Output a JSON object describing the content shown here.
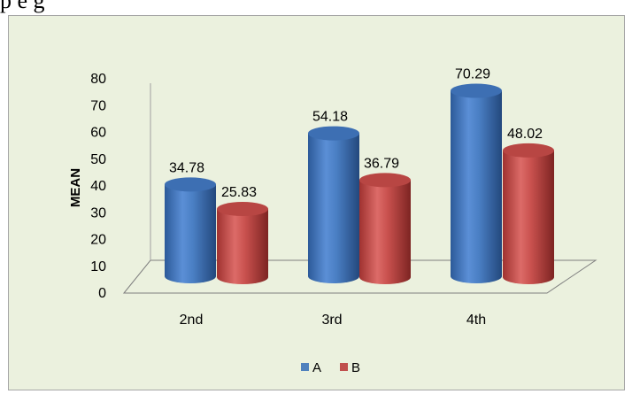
{
  "header_text": "p e g",
  "chart_data": {
    "type": "bar",
    "title": "",
    "xlabel": "",
    "ylabel": "MEAN",
    "ylim": [
      0,
      80
    ],
    "yticks": [
      0,
      10,
      20,
      30,
      40,
      50,
      60,
      70,
      80
    ],
    "categories": [
      "2nd",
      "3rd",
      "4th"
    ],
    "series": [
      {
        "name": "A",
        "values": [
          34.78,
          54.18,
          70.29
        ],
        "color": "#4f81bd"
      },
      {
        "name": "B",
        "values": [
          25.83,
          36.79,
          48.02
        ],
        "color": "#c0504d"
      }
    ],
    "data_labels": [
      [
        "34.78",
        "54.18",
        "70.29"
      ],
      [
        "25.83",
        "36.79",
        "48.02"
      ]
    ],
    "legend_position": "bottom",
    "grid": false
  }
}
